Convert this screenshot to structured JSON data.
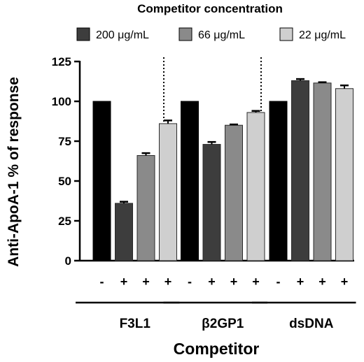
{
  "chart_data": {
    "type": "bar",
    "legend_title": "Competitor concentration",
    "legend_placement": "top",
    "legend": [
      {
        "label": "200 μg/mL",
        "color": "#3d3d3d"
      },
      {
        "label": "66 μg/mL",
        "color": "#8a8a8a"
      },
      {
        "label": "22 μg/mL",
        "color": "#cfcfcf"
      }
    ],
    "ylabel": "Anti-ApoA-1 % of response",
    "xlabel": "Competitor",
    "ylim": [
      0,
      125
    ],
    "yticks": [
      "0",
      "25",
      "50",
      "75",
      "100",
      "125"
    ],
    "grid": false,
    "groups": [
      {
        "name": "F3L1",
        "bars": [
          {
            "sign": "-",
            "value": 100,
            "error": 0,
            "color": "#000000"
          },
          {
            "sign": "+",
            "value": 36,
            "error": 1,
            "color": "#3d3d3d"
          },
          {
            "sign": "+",
            "value": 66,
            "error": 1.5,
            "color": "#8a8a8a"
          },
          {
            "sign": "+",
            "value": 86,
            "error": 2,
            "color": "#cfcfcf"
          }
        ]
      },
      {
        "name": "β2GP1",
        "bars": [
          {
            "sign": "-",
            "value": 100,
            "error": 0,
            "color": "#000000"
          },
          {
            "sign": "+",
            "value": 73,
            "error": 1.5,
            "color": "#3d3d3d"
          },
          {
            "sign": "+",
            "value": 85,
            "error": 0.5,
            "color": "#8a8a8a"
          },
          {
            "sign": "+",
            "value": 93,
            "error": 1,
            "color": "#cfcfcf"
          }
        ]
      },
      {
        "name": "dsDNA",
        "bars": [
          {
            "sign": "-",
            "value": 100,
            "error": 0,
            "color": "#000000"
          },
          {
            "sign": "+",
            "value": 113,
            "error": 1,
            "color": "#3d3d3d"
          },
          {
            "sign": "+",
            "value": 111.5,
            "error": 0.5,
            "color": "#8a8a8a"
          },
          {
            "sign": "+",
            "value": 108,
            "error": 2,
            "color": "#cfcfcf"
          }
        ]
      }
    ]
  }
}
